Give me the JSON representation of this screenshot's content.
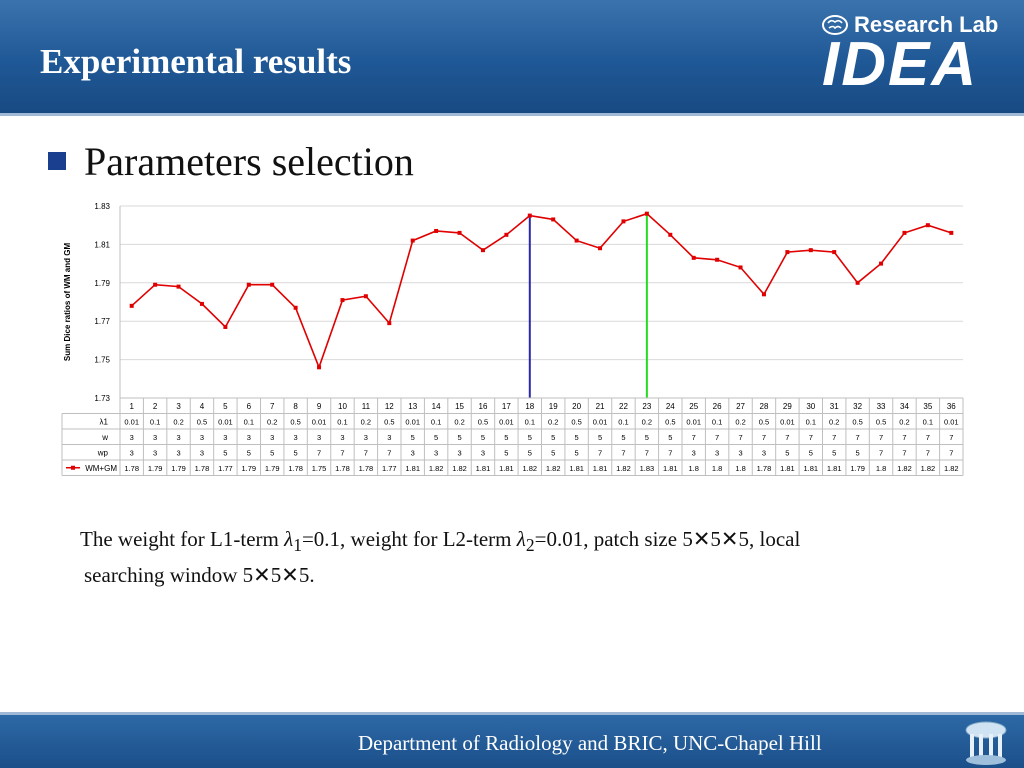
{
  "header": {
    "title": "Experimental results",
    "logo_small": "Research Lab",
    "logo_big": "IDEA"
  },
  "slide": {
    "heading": "Parameters selection",
    "caption_line1_a": "The weight for L1-term ",
    "lambda1_sym": "λ",
    "lambda1_sub": "1",
    "caption_line1_b": "=0.1, weight for L2-term ",
    "lambda2_sym": "λ",
    "lambda2_sub": "2",
    "caption_line1_c": "=0.01, patch size 5✕5✕5, local",
    "caption_line2": "searching window 5✕5✕5."
  },
  "footer": {
    "text": "Department of Radiology and BRIC, UNC-Chapel Hill"
  },
  "chart_data": {
    "type": "line",
    "ylabel": "Sum Dice ratios of WM and GM",
    "ylim": [
      1.73,
      1.83
    ],
    "yticks": [
      "1.73",
      "1.75",
      "1.77",
      "1.79",
      "1.81",
      "1.83"
    ],
    "grid": true,
    "categories": [
      "1",
      "2",
      "3",
      "4",
      "5",
      "6",
      "7",
      "8",
      "9",
      "10",
      "11",
      "12",
      "13",
      "14",
      "15",
      "16",
      "17",
      "18",
      "19",
      "20",
      "21",
      "22",
      "23",
      "24",
      "25",
      "26",
      "27",
      "28",
      "29",
      "30",
      "31",
      "32",
      "33",
      "34",
      "35",
      "36"
    ],
    "series": [
      {
        "name": "WM+GM",
        "color": "#e00000",
        "values": [
          1.778,
          1.789,
          1.788,
          1.779,
          1.767,
          1.789,
          1.789,
          1.777,
          1.746,
          1.781,
          1.783,
          1.769,
          1.812,
          1.817,
          1.816,
          1.807,
          1.815,
          1.825,
          1.823,
          1.812,
          1.808,
          1.822,
          1.826,
          1.815,
          1.803,
          1.802,
          1.798,
          1.784,
          1.806,
          1.807,
          1.806,
          1.79,
          1.8,
          1.816,
          1.82,
          1.816
        ]
      }
    ],
    "markers": [
      {
        "category": "18",
        "color": "#2a2aa8"
      },
      {
        "category": "23",
        "color": "#22dd22"
      }
    ],
    "table": {
      "rows": [
        {
          "label": "λ1",
          "values": [
            "0.01",
            "0.1",
            "0.2",
            "0.5",
            "0.01",
            "0.1",
            "0.2",
            "0.5",
            "0.01",
            "0.1",
            "0.2",
            "0.5",
            "0.01",
            "0.1",
            "0.2",
            "0.5",
            "0.01",
            "0.1",
            "0.2",
            "0.5",
            "0.01",
            "0.1",
            "0.2",
            "0.5",
            "0.01",
            "0.1",
            "0.2",
            "0.5",
            "0.01",
            "0.1",
            "0.2",
            "0.5",
            "0.5",
            "0.2",
            "0.1",
            "0.01"
          ]
        },
        {
          "label": "w",
          "values": [
            "3",
            "3",
            "3",
            "3",
            "3",
            "3",
            "3",
            "3",
            "3",
            "3",
            "3",
            "3",
            "5",
            "5",
            "5",
            "5",
            "5",
            "5",
            "5",
            "5",
            "5",
            "5",
            "5",
            "5",
            "7",
            "7",
            "7",
            "7",
            "7",
            "7",
            "7",
            "7",
            "7",
            "7",
            "7",
            "7"
          ]
        },
        {
          "label": "wp",
          "values": [
            "3",
            "3",
            "3",
            "3",
            "5",
            "5",
            "5",
            "5",
            "7",
            "7",
            "7",
            "7",
            "3",
            "3",
            "3",
            "3",
            "5",
            "5",
            "5",
            "5",
            "7",
            "7",
            "7",
            "7",
            "3",
            "3",
            "3",
            "3",
            "5",
            "5",
            "5",
            "5",
            "7",
            "7",
            "7",
            "7"
          ]
        },
        {
          "label": "WM+GM",
          "values": [
            "1.78",
            "1.79",
            "1.79",
            "1.78",
            "1.77",
            "1.79",
            "1.79",
            "1.78",
            "1.75",
            "1.78",
            "1.78",
            "1.77",
            "1.81",
            "1.82",
            "1.82",
            "1.81",
            "1.81",
            "1.82",
            "1.82",
            "1.81",
            "1.81",
            "1.82",
            "1.83",
            "1.81",
            "1.8",
            "1.8",
            "1.8",
            "1.78",
            "1.81",
            "1.81",
            "1.81",
            "1.79",
            "1.8",
            "1.82",
            "1.82",
            "1.82"
          ]
        }
      ]
    }
  }
}
